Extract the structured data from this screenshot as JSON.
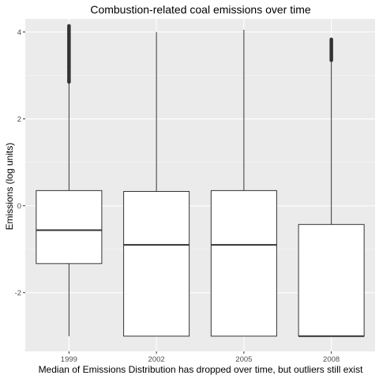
{
  "chart_data": {
    "type": "boxplot",
    "title": "Combustion-related coal emissions over time",
    "xlabel": "Median of Emissions Distribution has dropped over time, but outliers still exist",
    "ylabel": "Emissions (log units)",
    "ylim": [
      -3.35,
      4.3
    ],
    "yticks": [
      -2,
      0,
      2,
      4
    ],
    "ytick_labels": [
      "-2",
      "0",
      "2",
      "4"
    ],
    "grid": true,
    "categories": [
      "1999",
      "2002",
      "2005",
      "2008"
    ],
    "boxes": [
      {
        "category": "1999",
        "whisker_low": -3.0,
        "q1": -1.33,
        "median": -0.56,
        "q3": 0.35,
        "whisker_high": 2.85,
        "outliers_low": 2.85,
        "outliers_high": 4.15
      },
      {
        "category": "2002",
        "whisker_low": -3.0,
        "q1": -3.0,
        "median": -0.9,
        "q3": 0.33,
        "whisker_high": 4.0
      },
      {
        "category": "2005",
        "whisker_low": -3.0,
        "q1": -3.0,
        "median": -0.9,
        "q3": 0.35,
        "whisker_high": 4.05
      },
      {
        "category": "2008",
        "whisker_low": -3.0,
        "q1": -3.0,
        "median": -3.0,
        "q3": -0.43,
        "whisker_high": 3.35,
        "outliers_low": 3.35,
        "outliers_high": 3.85
      }
    ],
    "colors": {
      "panel": "#ebebeb",
      "grid_major": "#ffffff",
      "grid_minor": "#f5f5f5",
      "box_fill": "#ffffff",
      "stroke": "#333333",
      "tick_text": "#4d4d4d",
      "title_text": "#000000"
    }
  }
}
